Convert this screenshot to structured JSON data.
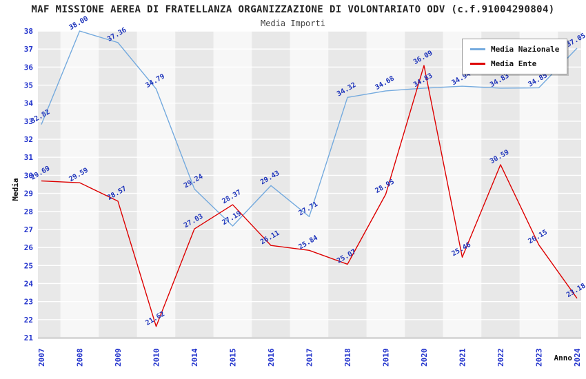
{
  "title": "MAF MISSIONE AEREA DI FRATELLANZA ORGANIZZAZIONE DI VOLONTARIATO ODV (c.f.91004290804)",
  "subtitle": "Media Importi",
  "chart_data": {
    "type": "line",
    "x": [
      "2007",
      "2008",
      "2009",
      "2010",
      "2014",
      "2015",
      "2016",
      "2017",
      "2018",
      "2019",
      "2020",
      "2021",
      "2022",
      "2023",
      "2024"
    ],
    "series": [
      {
        "name": "Media Nazionale",
        "color": "#74aade",
        "values": [
          32.82,
          38.0,
          37.36,
          34.79,
          29.24,
          27.19,
          29.43,
          27.71,
          34.32,
          34.68,
          34.83,
          34.94,
          34.83,
          34.85,
          37.05
        ]
      },
      {
        "name": "Media Ente",
        "color": "#dd0000",
        "values": [
          29.69,
          29.59,
          28.57,
          21.62,
          27.03,
          28.37,
          26.11,
          25.84,
          25.07,
          28.95,
          36.09,
          25.46,
          30.59,
          26.15,
          23.18
        ]
      }
    ],
    "xlabel": "Anno",
    "ylabel": "Media",
    "ylim": [
      21,
      38
    ],
    "ytick_step": 1,
    "grid": true,
    "legend_position": "top-right",
    "axis_label_color": "#2233cc",
    "value_label_color": "#1f35bb",
    "grid_color": "#ffffff",
    "band_colors": [
      "#e8e8e8",
      "#f7f7f7"
    ],
    "axis_line_color": "#666666"
  }
}
